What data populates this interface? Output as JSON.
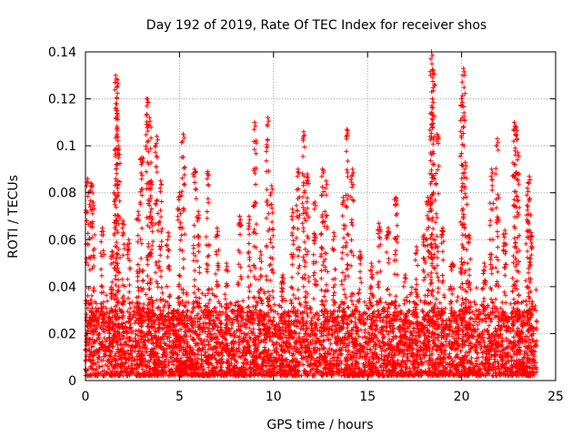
{
  "chart_data": {
    "type": "scatter",
    "title": "Day 192 of 2019, Rate Of TEC Index for receiver shos",
    "xlabel": "GPS time / hours",
    "ylabel": "ROTI / TECUs",
    "xlim": [
      0,
      25
    ],
    "ylim": [
      0,
      0.14
    ],
    "x_ticks": [
      0,
      5,
      10,
      15,
      20,
      25
    ],
    "y_ticks": [
      0,
      0.02,
      0.04,
      0.06,
      0.08,
      0.1,
      0.12,
      0.14
    ],
    "x_tick_labels": [
      "0",
      "5",
      "10",
      "15",
      "20",
      "25"
    ],
    "y_tick_labels": [
      "0",
      "0.02",
      "0.04",
      "0.06",
      "0.08",
      "0.1",
      "0.12",
      "0.14"
    ],
    "grid": true,
    "marker": "+",
    "color": "#ff0000",
    "x_range_of_data": [
      0,
      24
    ],
    "background_band": {
      "min": 0.002,
      "typical_max": 0.03,
      "typical": 0.012
    },
    "peaks": [
      {
        "x": 0.1,
        "y": 0.086
      },
      {
        "x": 0.3,
        "y": 0.084
      },
      {
        "x": 0.4,
        "y": 0.076
      },
      {
        "x": 0.9,
        "y": 0.065
      },
      {
        "x": 1.4,
        "y": 0.055
      },
      {
        "x": 1.6,
        "y": 0.13
      },
      {
        "x": 1.7,
        "y": 0.128
      },
      {
        "x": 1.65,
        "y": 0.115
      },
      {
        "x": 1.75,
        "y": 0.1
      },
      {
        "x": 2.0,
        "y": 0.068
      },
      {
        "x": 2.3,
        "y": 0.06
      },
      {
        "x": 2.8,
        "y": 0.072
      },
      {
        "x": 3.0,
        "y": 0.095
      },
      {
        "x": 3.3,
        "y": 0.12
      },
      {
        "x": 3.4,
        "y": 0.112
      },
      {
        "x": 3.5,
        "y": 0.085
      },
      {
        "x": 3.8,
        "y": 0.104
      },
      {
        "x": 4.0,
        "y": 0.085
      },
      {
        "x": 4.4,
        "y": 0.063
      },
      {
        "x": 5.0,
        "y": 0.08
      },
      {
        "x": 5.2,
        "y": 0.105
      },
      {
        "x": 5.8,
        "y": 0.09
      },
      {
        "x": 6.0,
        "y": 0.072
      },
      {
        "x": 6.5,
        "y": 0.089
      },
      {
        "x": 7.0,
        "y": 0.065
      },
      {
        "x": 7.5,
        "y": 0.05
      },
      {
        "x": 8.2,
        "y": 0.07
      },
      {
        "x": 8.7,
        "y": 0.07
      },
      {
        "x": 9.0,
        "y": 0.11
      },
      {
        "x": 9.3,
        "y": 0.055
      },
      {
        "x": 9.7,
        "y": 0.112
      },
      {
        "x": 9.9,
        "y": 0.083
      },
      {
        "x": 10.5,
        "y": 0.045
      },
      {
        "x": 11.0,
        "y": 0.073
      },
      {
        "x": 11.3,
        "y": 0.09
      },
      {
        "x": 11.6,
        "y": 0.106
      },
      {
        "x": 11.8,
        "y": 0.088
      },
      {
        "x": 12.2,
        "y": 0.076
      },
      {
        "x": 12.6,
        "y": 0.09
      },
      {
        "x": 12.8,
        "y": 0.085
      },
      {
        "x": 13.2,
        "y": 0.063
      },
      {
        "x": 13.7,
        "y": 0.078
      },
      {
        "x": 13.9,
        "y": 0.107
      },
      {
        "x": 14.2,
        "y": 0.09
      },
      {
        "x": 14.6,
        "y": 0.055
      },
      {
        "x": 15.2,
        "y": 0.05
      },
      {
        "x": 15.6,
        "y": 0.067
      },
      {
        "x": 16.1,
        "y": 0.065
      },
      {
        "x": 16.5,
        "y": 0.078
      },
      {
        "x": 17.0,
        "y": 0.045
      },
      {
        "x": 17.6,
        "y": 0.057
      },
      {
        "x": 18.0,
        "y": 0.062
      },
      {
        "x": 18.2,
        "y": 0.078
      },
      {
        "x": 18.4,
        "y": 0.14
      },
      {
        "x": 18.45,
        "y": 0.12
      },
      {
        "x": 18.5,
        "y": 0.132
      },
      {
        "x": 18.7,
        "y": 0.105
      },
      {
        "x": 19.0,
        "y": 0.065
      },
      {
        "x": 19.5,
        "y": 0.05
      },
      {
        "x": 20.0,
        "y": 0.12
      },
      {
        "x": 20.1,
        "y": 0.133
      },
      {
        "x": 20.2,
        "y": 0.093
      },
      {
        "x": 20.4,
        "y": 0.062
      },
      {
        "x": 21.2,
        "y": 0.05
      },
      {
        "x": 21.6,
        "y": 0.09
      },
      {
        "x": 21.9,
        "y": 0.103
      },
      {
        "x": 22.3,
        "y": 0.064
      },
      {
        "x": 22.8,
        "y": 0.11
      },
      {
        "x": 22.9,
        "y": 0.108
      },
      {
        "x": 23.0,
        "y": 0.097
      },
      {
        "x": 23.5,
        "y": 0.082
      },
      {
        "x": 23.6,
        "y": 0.087
      },
      {
        "x": 23.7,
        "y": 0.063
      }
    ]
  }
}
